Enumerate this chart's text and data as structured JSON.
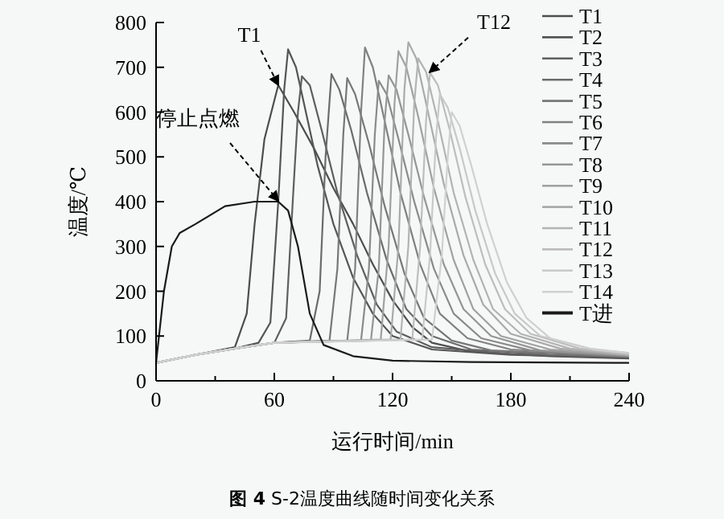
{
  "chart_data": {
    "type": "line",
    "title": "**图 4** S-2温度曲线随时间变化关系",
    "xlabel": "运行时间/min",
    "ylabel": "温度/℃",
    "xlim": [
      0,
      240
    ],
    "ylim": [
      0,
      800
    ],
    "xticks": [
      0,
      {
        "value": 30,
        "label": null
      },
      60,
      {
        "value": 90,
        "label": null
      },
      120,
      {
        "value": 150,
        "label": null
      },
      180,
      {
        "value": 210,
        "label": null
      },
      240
    ],
    "yticks": [
      0,
      100,
      200,
      300,
      400,
      500,
      600,
      700,
      800
    ],
    "legend": "top right",
    "grid": false,
    "marker": "none",
    "line_style": "solid",
    "annotations": [
      "T1",
      "T12",
      "停止点燃"
    ],
    "series": [
      {
        "name": "T1",
        "color": "#4d4d4d",
        "x": [
          0,
          20,
          40,
          46,
          50,
          55,
          62,
          70,
          80,
          90,
          100,
          110,
          120,
          130,
          140,
          160,
          200,
          240
        ],
        "values": [
          40,
          58,
          75,
          150,
          350,
          540,
          660,
          600,
          520,
          430,
          350,
          260,
          180,
          120,
          85,
          65,
          55,
          50
        ]
      },
      {
        "name": "T2",
        "color": "#555555",
        "x": [
          0,
          20,
          40,
          52,
          58,
          62,
          65,
          67,
          71,
          75,
          82,
          90,
          100,
          110,
          120,
          140,
          180,
          240
        ],
        "values": [
          40,
          58,
          72,
          85,
          130,
          400,
          650,
          740,
          700,
          620,
          480,
          350,
          230,
          150,
          100,
          70,
          58,
          52
        ]
      },
      {
        "name": "T3",
        "color": "#5e5e5e",
        "x": [
          0,
          20,
          40,
          60,
          66,
          70,
          72,
          74,
          78,
          84,
          92,
          102,
          112,
          122,
          140,
          180,
          240
        ],
        "values": [
          40,
          58,
          72,
          85,
          140,
          450,
          600,
          680,
          660,
          560,
          420,
          280,
          170,
          110,
          75,
          60,
          52
        ]
      },
      {
        "name": "T4",
        "color": "#6b6b6b",
        "x": [
          0,
          20,
          40,
          60,
          78,
          83,
          86,
          89,
          93,
          99,
          107,
          117,
          127,
          140,
          160,
          200,
          240
        ],
        "values": [
          40,
          58,
          72,
          85,
          90,
          200,
          500,
          685,
          650,
          560,
          420,
          270,
          160,
          100,
          70,
          58,
          53
        ]
      },
      {
        "name": "T5",
        "color": "#777777",
        "x": [
          0,
          20,
          40,
          60,
          88,
          92,
          95,
          97,
          101,
          108,
          116,
          126,
          136,
          150,
          170,
          240
        ],
        "values": [
          40,
          58,
          72,
          85,
          90,
          250,
          550,
          676,
          640,
          530,
          390,
          240,
          140,
          90,
          68,
          54
        ]
      },
      {
        "name": "T6",
        "color": "#808080",
        "x": [
          0,
          20,
          40,
          60,
          97,
          101,
          104,
          106,
          110,
          116,
          124,
          134,
          144,
          158,
          180,
          240
        ],
        "values": [
          40,
          58,
          72,
          85,
          90,
          250,
          600,
          744,
          700,
          580,
          420,
          260,
          150,
          95,
          70,
          55
        ]
      },
      {
        "name": "T7",
        "color": "#8a8a8a",
        "x": [
          0,
          20,
          40,
          60,
          104,
          108,
          111,
          113,
          117,
          123,
          131,
          141,
          151,
          165,
          190,
          240
        ],
        "values": [
          40,
          58,
          72,
          85,
          90,
          250,
          550,
          670,
          640,
          540,
          400,
          250,
          150,
          95,
          68,
          55
        ]
      },
      {
        "name": "T8",
        "color": "#959595",
        "x": [
          0,
          20,
          40,
          60,
          109,
          113,
          116,
          118,
          122,
          128,
          136,
          146,
          156,
          170,
          195,
          240
        ],
        "values": [
          40,
          58,
          72,
          85,
          90,
          250,
          580,
          682,
          650,
          550,
          410,
          260,
          160,
          100,
          68,
          56
        ]
      },
      {
        "name": "T9",
        "color": "#a0a0a0",
        "x": [
          0,
          20,
          40,
          60,
          114,
          118,
          121,
          123,
          127,
          133,
          141,
          151,
          161,
          175,
          200,
          240
        ],
        "values": [
          40,
          58,
          72,
          85,
          92,
          300,
          620,
          736,
          700,
          590,
          430,
          270,
          160,
          100,
          70,
          57
        ]
      },
      {
        "name": "T10",
        "color": "#aaaaaa",
        "x": [
          0,
          20,
          40,
          60,
          119,
          123,
          126,
          128,
          132,
          138,
          146,
          156,
          166,
          180,
          205,
          240
        ],
        "values": [
          40,
          58,
          72,
          85,
          92,
          300,
          650,
          756,
          720,
          600,
          440,
          280,
          170,
          105,
          72,
          58
        ]
      },
      {
        "name": "T11",
        "color": "#b3b3b3",
        "x": [
          0,
          20,
          40,
          60,
          124,
          128,
          131,
          133,
          137,
          143,
          151,
          161,
          171,
          185,
          210,
          240
        ],
        "values": [
          40,
          58,
          72,
          85,
          92,
          300,
          620,
          720,
          690,
          580,
          420,
          270,
          160,
          105,
          72,
          58
        ]
      },
      {
        "name": "T12",
        "color": "#bdbdbd",
        "x": [
          0,
          20,
          40,
          60,
          130,
          134,
          137,
          139,
          143,
          149,
          157,
          167,
          177,
          190,
          215,
          240
        ],
        "values": [
          40,
          58,
          72,
          85,
          92,
          300,
          580,
          688,
          660,
          560,
          410,
          260,
          160,
          105,
          72,
          60
        ]
      },
      {
        "name": "T13",
        "color": "#c8c8c8",
        "x": [
          0,
          20,
          40,
          60,
          135,
          139,
          142,
          144,
          148,
          154,
          162,
          172,
          182,
          195,
          220,
          240
        ],
        "values": [
          40,
          58,
          72,
          85,
          92,
          280,
          540,
          640,
          610,
          520,
          380,
          240,
          150,
          100,
          72,
          62
        ]
      },
      {
        "name": "T14",
        "color": "#d0d0d0",
        "x": [
          0,
          20,
          40,
          60,
          140,
          145,
          148,
          150,
          154,
          160,
          168,
          178,
          188,
          200,
          222,
          240
        ],
        "values": [
          40,
          58,
          72,
          85,
          92,
          280,
          500,
          600,
          570,
          480,
          350,
          220,
          140,
          95,
          70,
          62
        ]
      },
      {
        "name": "T进",
        "color": "#1a1a1a",
        "x": [
          0,
          4,
          8,
          12,
          20,
          35,
          50,
          62,
          67,
          72,
          78,
          85,
          100,
          120,
          160,
          240
        ],
        "values": [
          40,
          200,
          300,
          330,
          350,
          390,
          400,
          400,
          380,
          300,
          150,
          80,
          55,
          45,
          42,
          40
        ]
      }
    ]
  }
}
